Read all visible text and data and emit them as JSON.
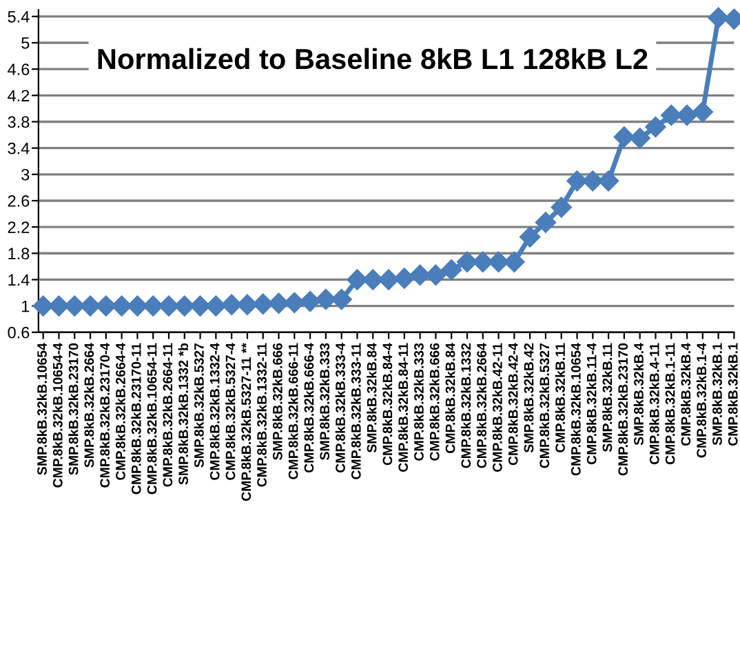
{
  "chart_data": {
    "type": "line",
    "title": "Normalized to Baseline 8kB L1 128kB L2",
    "categories": [
      "SMP.8kB.32kB.10654",
      "CMP.8kB.32kB.10654-4",
      "SMP.8kB.32kB.23170",
      "SMP.8kB.32kB.2664",
      "CMP.8kB.32kB.23170-4",
      "CMP.8kB.32kB.2664-4",
      "CMP.8kB.32kB.23170-11",
      "CMP.8kB.32kB.10654-11",
      "CMP.8kB.32kB.2664-11",
      "SMP.8kB.32kB.1332 *b",
      "SMP.8kB.32kB.5327",
      "CMP.8kB.32kB.1332-4",
      "CMP.8kB.32kB.5327-4",
      "CMP.8kB.32kB.5327-11 **",
      "CMP.8kB.32kB.1332-11",
      "SMP.8kB.32kB.666",
      "CMP.8kB.32kB.666-11",
      "CMP.8kB.32kB.666-4",
      "SMP.8kB.32kB.333",
      "CMP.8kB.32kB.333-4",
      "CMP.8kB.32kB.333-11",
      "SMP.8kB.32kB.84",
      "CMP.8kB.32kB.84-4",
      "CMP.8kB.32kB.84-11",
      "CMP.8kB.32kB.333",
      "CMP.8kB.32kB.666",
      "CMP.8kB.32kB.84",
      "CMP.8kB.32kB.1332",
      "CMP.8kB.32kB.2664",
      "CMP.8kB.32kB.42-11",
      "CMP.8kB.32kB.42-4",
      "SMP.8kB.32kB.42",
      "CMP.8kB.32kB.5327",
      "CMP.8kB.32kB.11",
      "CMP.8kB.32kB.10654",
      "CMP.8kB.32kB.11-4",
      "SMP.8kB.32kB.11",
      "CMP.8kB.32kB.23170",
      "SMP.8kB.32kB.4",
      "CMP.8kB.32kB.4-11",
      "CMP.8kB.32kB.1-11",
      "CMP.8kB.32kB.4",
      "CMP.8kB.32kB.1-4",
      "SMP.8kB.32kB.1",
      "CMP.8kB.32kB.1"
    ],
    "series": [
      {
        "color": "#4a7ebb",
        "values": [
          1,
          1,
          1,
          1,
          1,
          1,
          1,
          1,
          1,
          1,
          1,
          1,
          1.02,
          1.02,
          1.03,
          1.04,
          1.05,
          1.07,
          1.1,
          1.1,
          1.4,
          1.4,
          1.4,
          1.42,
          1.47,
          1.47,
          1.55,
          1.67,
          1.67,
          1.67,
          1.67,
          2.05,
          2.27,
          2.5,
          2.9,
          2.9,
          2.9,
          3.57,
          3.55,
          3.72,
          3.9,
          3.9,
          3.95,
          5.38,
          5.36
        ]
      }
    ],
    "ylim": [
      0.6,
      5.5
    ],
    "yticks": [
      0.6,
      1,
      1.4,
      1.8,
      2.2,
      2.6,
      3,
      3.4,
      3.8,
      4.2,
      4.6,
      5,
      5.4
    ],
    "grid": "y",
    "marker": "diamond",
    "line_style": "solid"
  }
}
